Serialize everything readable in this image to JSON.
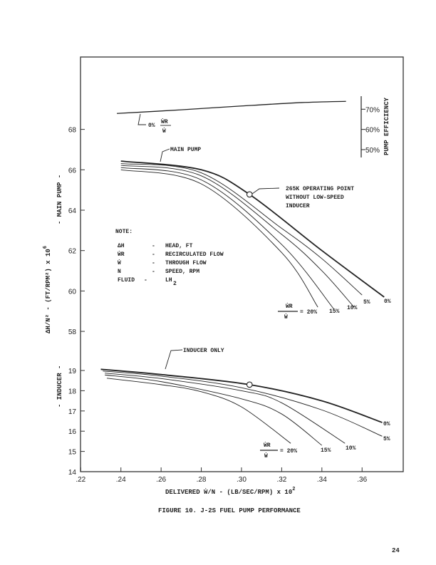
{
  "chart_data": {
    "type": "line",
    "title": "FIGURE 10.  J-2S FUEL PUMP PERFORMANCE",
    "xlabel": "DELIVERED Ẇ/N - (LB/SEC/RPM) x 10",
    "xlabel_sup": "2",
    "ylabel": "ΔH/N² - (FT/RPM²) x 10",
    "ylabel_sup": "6",
    "ylabel_main": "- MAIN PUMP -",
    "ylabel_inducer": "- INDUCER -",
    "xlim": [
      0.22,
      0.38
    ],
    "x_ticks": [
      ".22",
      ".24",
      ".26",
      ".28",
      ".30",
      ".32",
      ".34",
      ".36"
    ],
    "x_tick_values": [
      0.22,
      0.24,
      0.26,
      0.28,
      0.3,
      0.32,
      0.34,
      0.36
    ],
    "main_pump_axis": {
      "ticks": [
        "58",
        "60",
        "62",
        "64",
        "66",
        "68"
      ],
      "values": [
        58,
        60,
        62,
        64,
        66,
        68
      ]
    },
    "inducer_axis": {
      "ticks": [
        "14",
        "15",
        "16",
        "17",
        "18",
        "19"
      ],
      "values": [
        14,
        15,
        16,
        17,
        18,
        19
      ]
    },
    "efficiency_axis": {
      "label": "PUMP EFFICIENCY",
      "ticks": [
        "50%",
        "60%",
        "70%"
      ],
      "values": [
        50,
        60,
        70
      ]
    },
    "efficiency_series": {
      "name": "0% Ẇr/Ẇ",
      "points": [
        [
          0.238,
          67.9
        ],
        [
          0.27,
          69.7
        ],
        [
          0.3,
          71.6
        ],
        [
          0.33,
          73.3
        ],
        [
          0.352,
          73.9
        ]
      ]
    },
    "main_pump_series": [
      {
        "name": "0%",
        "points": [
          [
            0.24,
            66.43
          ],
          [
            0.28,
            66.0
          ],
          [
            0.304,
            64.78
          ],
          [
            0.34,
            62.0
          ],
          [
            0.371,
            59.7
          ]
        ]
      },
      {
        "name": "5%",
        "points": [
          [
            0.24,
            66.31
          ],
          [
            0.28,
            65.85
          ],
          [
            0.32,
            63.1
          ],
          [
            0.34,
            61.6
          ],
          [
            0.36,
            59.8
          ]
        ]
      },
      {
        "name": "10%",
        "points": [
          [
            0.24,
            66.22
          ],
          [
            0.28,
            65.7
          ],
          [
            0.32,
            62.8
          ],
          [
            0.34,
            61.0
          ],
          [
            0.356,
            59.2
          ]
        ]
      },
      {
        "name": "15%",
        "points": [
          [
            0.24,
            66.11
          ],
          [
            0.28,
            65.5
          ],
          [
            0.32,
            62.3
          ],
          [
            0.346,
            59.1
          ]
        ]
      },
      {
        "name": "20%",
        "points": [
          [
            0.24,
            66.0
          ],
          [
            0.28,
            65.3
          ],
          [
            0.32,
            61.9
          ],
          [
            0.338,
            59.2
          ]
        ]
      }
    ],
    "inducer_series": [
      {
        "name": "0%",
        "points": [
          [
            0.23,
            19.06
          ],
          [
            0.26,
            18.8
          ],
          [
            0.304,
            18.3
          ],
          [
            0.34,
            17.5
          ],
          [
            0.37,
            16.43
          ]
        ]
      },
      {
        "name": "5%",
        "points": [
          [
            0.231,
            18.97
          ],
          [
            0.26,
            18.72
          ],
          [
            0.3,
            18.15
          ],
          [
            0.34,
            17.05
          ],
          [
            0.37,
            15.75
          ]
        ]
      },
      {
        "name": "10%",
        "points": [
          [
            0.232,
            18.87
          ],
          [
            0.26,
            18.6
          ],
          [
            0.3,
            18.0
          ],
          [
            0.32,
            17.4
          ],
          [
            0.3515,
            15.4
          ]
        ]
      },
      {
        "name": "15%",
        "points": [
          [
            0.232,
            18.78
          ],
          [
            0.26,
            18.45
          ],
          [
            0.3,
            17.6
          ],
          [
            0.32,
            16.85
          ],
          [
            0.34,
            15.3
          ]
        ]
      },
      {
        "name": "20%",
        "points": [
          [
            0.233,
            18.62
          ],
          [
            0.26,
            18.3
          ],
          [
            0.28,
            17.95
          ],
          [
            0.3,
            17.2
          ],
          [
            0.3245,
            15.4
          ]
        ]
      }
    ],
    "main_operating_point": [
      0.304,
      64.78
    ],
    "inducer_operating_point": [
      0.304,
      18.3
    ],
    "annotations": {
      "main_pump": "MAIN PUMP",
      "inducer_only": "INDUCER ONLY",
      "op_point": [
        "265K OPERATING POINT",
        "WITHOUT LOW-SPEED",
        "INDUCER"
      ],
      "eff_label_pct": "0%",
      "frac_num": "ẆR",
      "frac_den": "Ẇ",
      "eq20": "= 20%",
      "pct": {
        "p0": "0%",
        "p5": "5%",
        "p10": "10%",
        "p15": "15%"
      }
    },
    "note": {
      "title": "NOTE:",
      "rows": [
        {
          "sym": "ΔH",
          "dash": "-",
          "desc": "HEAD, FT"
        },
        {
          "sym": "ẆR",
          "dash": "-",
          "desc": "RECIRCULATED FLOW"
        },
        {
          "sym": "Ẇ",
          "dash": "-",
          "desc": "THROUGH FLOW"
        },
        {
          "sym": "N",
          "dash": "-",
          "desc": "SPEED, RPM"
        },
        {
          "sym": "FLUID",
          "dash": "-",
          "desc": "LH",
          "sub": "2"
        }
      ]
    },
    "grid": false
  },
  "page_number": "24"
}
